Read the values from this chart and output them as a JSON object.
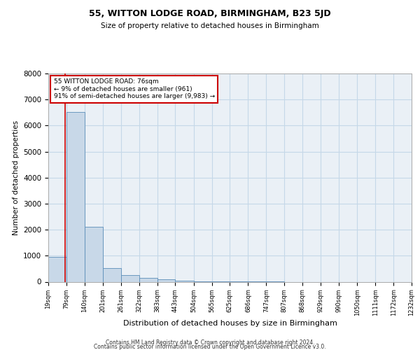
{
  "title1": "55, WITTON LODGE ROAD, BIRMINGHAM, B23 5JD",
  "title2": "Size of property relative to detached houses in Birmingham",
  "xlabel": "Distribution of detached houses by size in Birmingham",
  "ylabel": "Number of detached properties",
  "footer1": "Contains HM Land Registry data © Crown copyright and database right 2024.",
  "footer2": "Contains public sector information licensed under the Open Government Licence v3.0.",
  "annotation_line1": "55 WITTON LODGE ROAD: 76sqm",
  "annotation_line2": "← 9% of detached houses are smaller (961)",
  "annotation_line3": "91% of semi-detached houses are larger (9,983) →",
  "property_size": 76,
  "bar_color": "#c8d8e8",
  "bar_edge_color": "#5b8db8",
  "redline_color": "#cc0000",
  "annotation_box_edge": "#cc0000",
  "grid_color": "#c5d8e8",
  "background_color": "#eaf0f6",
  "bin_edges": [
    19,
    79,
    140,
    201,
    261,
    322,
    383,
    443,
    504,
    565,
    625,
    686,
    747,
    807,
    868,
    929,
    990,
    1050,
    1111,
    1172,
    1232
  ],
  "bar_heights": [
    961,
    6520,
    2100,
    520,
    260,
    150,
    100,
    50,
    20,
    5,
    2,
    1,
    1,
    0,
    0,
    0,
    0,
    0,
    0,
    0
  ],
  "ylim": [
    0,
    8000
  ],
  "yticks": [
    0,
    1000,
    2000,
    3000,
    4000,
    5000,
    6000,
    7000,
    8000
  ]
}
